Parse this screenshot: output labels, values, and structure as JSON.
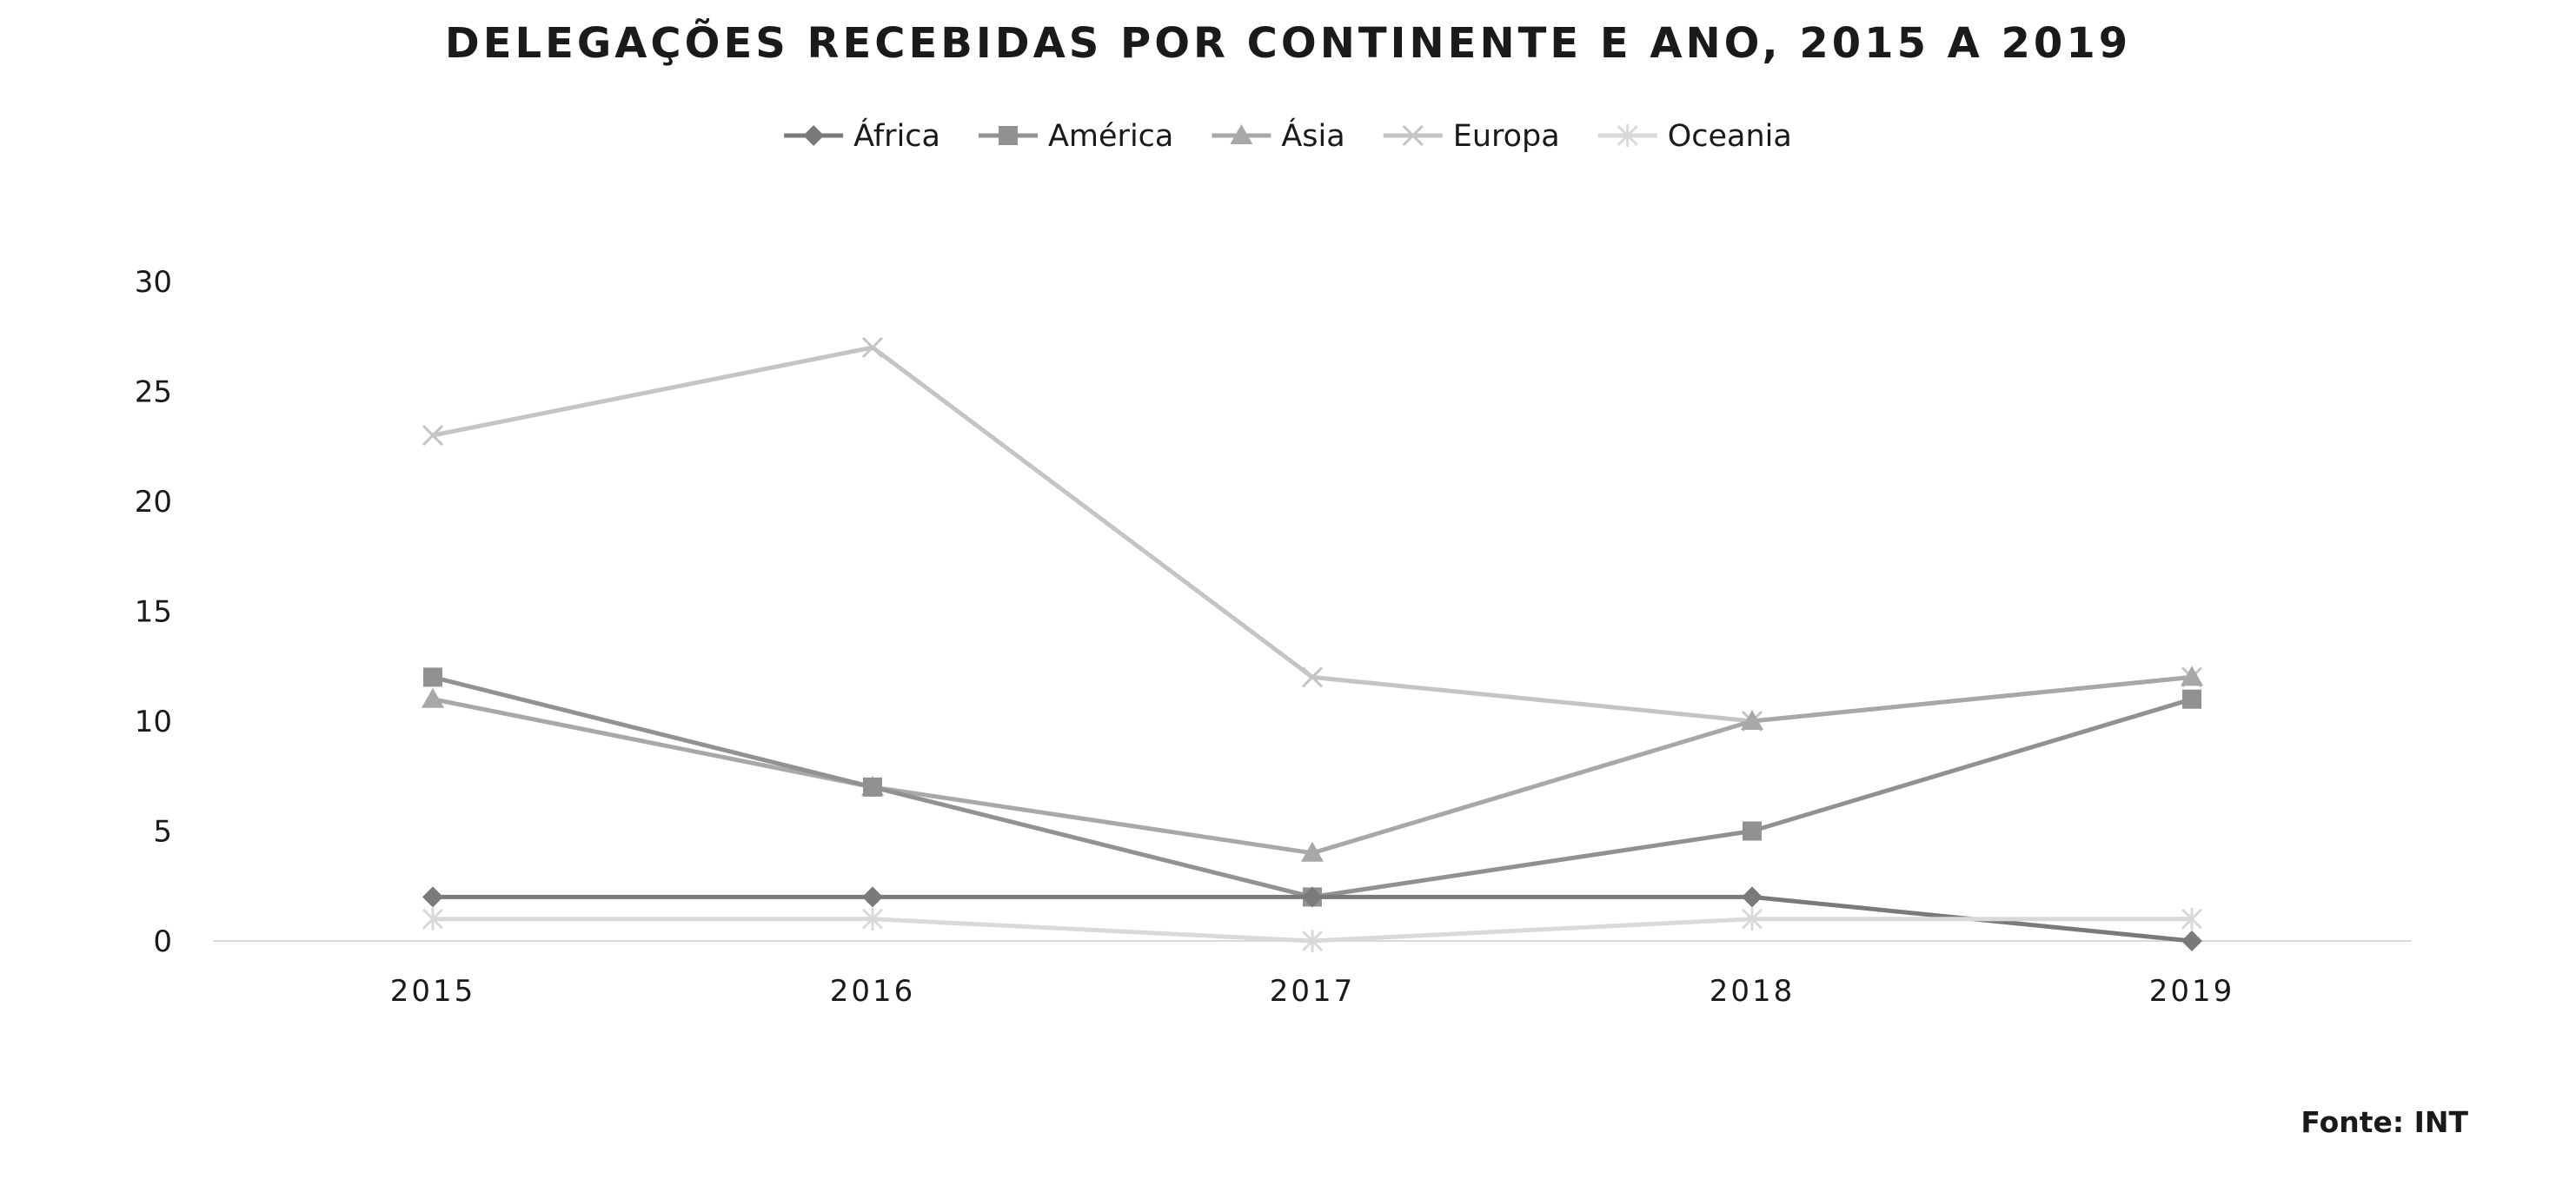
{
  "chart_data": {
    "type": "line",
    "title": "DELEGAÇÕES RECEBIDAS POR CONTINENTE E ANO, 2015 A 2019",
    "xlabel": "",
    "ylabel": "",
    "categories": [
      "2015",
      "2016",
      "2017",
      "2018",
      "2019"
    ],
    "ylim": [
      0,
      30
    ],
    "yticks": [
      0,
      5,
      10,
      15,
      20,
      25,
      30
    ],
    "grid": false,
    "legend_position": "top",
    "series": [
      {
        "name": "África",
        "values": [
          2,
          2,
          2,
          2,
          0
        ],
        "color": "#7a7a7a",
        "marker": "diamond"
      },
      {
        "name": "América",
        "values": [
          12,
          7,
          2,
          5,
          11
        ],
        "color": "#919191",
        "marker": "square"
      },
      {
        "name": "Ásia",
        "values": [
          11,
          7,
          4,
          10,
          12
        ],
        "color": "#a8a8a8",
        "marker": "triangle"
      },
      {
        "name": "Europa",
        "values": [
          23,
          27,
          12,
          10,
          12
        ],
        "color": "#c4c4c4",
        "marker": "x"
      },
      {
        "name": "Oceania",
        "values": [
          1,
          1,
          0,
          1,
          1
        ],
        "color": "#d9d9d9",
        "marker": "star"
      }
    ]
  },
  "source": "Fonte: INT"
}
